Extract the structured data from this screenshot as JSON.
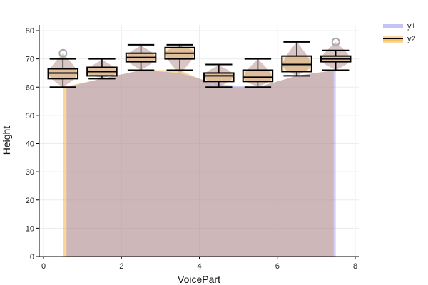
{
  "chart_data": {
    "type": "box",
    "xlabel": "VoicePart",
    "ylabel": "Height",
    "xlim": [
      0,
      8
    ],
    "ylim": [
      0,
      80
    ],
    "xticks": [
      0,
      2,
      4,
      6,
      8
    ],
    "yticks": [
      0,
      10,
      20,
      30,
      40,
      50,
      60,
      70,
      80
    ],
    "grid": true,
    "legend_position": "top-right",
    "colors": {
      "y1": "#7b7bf0",
      "y2": "#f5a623",
      "overlap": "#c49a8a",
      "box_line": "#000000",
      "outlier": "#aaaaaa"
    },
    "legend": [
      {
        "name": "y1",
        "swatch": "fill"
      },
      {
        "name": "y2",
        "swatch": "line+fill"
      }
    ],
    "area": {
      "y1": {
        "x": [
          0.5,
          1.5,
          2.5,
          3.5,
          4.5,
          5.5,
          6.5,
          7.5
        ],
        "y": [
          60,
          63,
          66,
          65,
          61,
          60,
          64,
          66
        ]
      },
      "y2": {
        "x": [
          0.5,
          1.5,
          2.5,
          3.5,
          4.5,
          5.5,
          6.5,
          7.5
        ],
        "y": [
          60,
          63,
          66,
          66,
          60,
          60,
          64,
          66
        ]
      }
    },
    "boxes": [
      {
        "x": 0.5,
        "whisker_low": 60,
        "q1": 63,
        "median": 65,
        "q3": 66.5,
        "whisker_high": 70,
        "outliers": [
          72
        ],
        "violin_min": 60,
        "violin_max": 72
      },
      {
        "x": 1.5,
        "whisker_low": 63,
        "q1": 64,
        "median": 65.5,
        "q3": 67,
        "whisker_high": 70,
        "outliers": [],
        "violin_min": 63,
        "violin_max": 70
      },
      {
        "x": 2.5,
        "whisker_low": 66,
        "q1": 69,
        "median": 70.5,
        "q3": 72,
        "whisker_high": 75,
        "outliers": [],
        "violin_min": 66,
        "violin_max": 75
      },
      {
        "x": 3.5,
        "whisker_low": 66,
        "q1": 70,
        "median": 72,
        "q3": 74,
        "whisker_high": 75,
        "outliers": [],
        "violin_min": 65,
        "violin_max": 75
      },
      {
        "x": 4.5,
        "whisker_low": 60,
        "q1": 62,
        "median": 64,
        "q3": 65,
        "whisker_high": 68,
        "outliers": [],
        "violin_min": 60,
        "violin_max": 68
      },
      {
        "x": 5.5,
        "whisker_low": 60,
        "q1": 62,
        "median": 63.5,
        "q3": 66,
        "whisker_high": 70,
        "outliers": [],
        "violin_min": 60,
        "violin_max": 70
      },
      {
        "x": 6.5,
        "whisker_low": 64,
        "q1": 65.5,
        "median": 68,
        "q3": 71,
        "whisker_high": 76,
        "outliers": [],
        "violin_min": 64,
        "violin_max": 76
      },
      {
        "x": 7.5,
        "whisker_low": 66,
        "q1": 69,
        "median": 70,
        "q3": 71,
        "whisker_high": 73,
        "outliers": [
          76
        ],
        "violin_min": 66,
        "violin_max": 76
      }
    ]
  }
}
